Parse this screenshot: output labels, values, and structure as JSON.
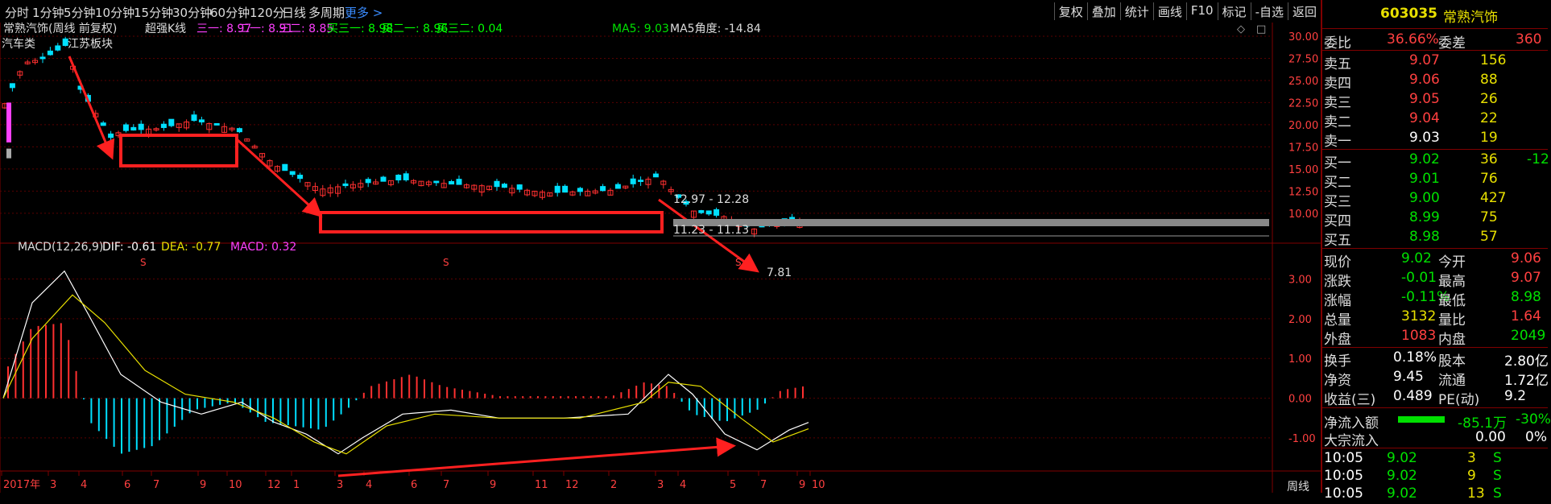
{
  "timeframes": [
    "分时",
    "1分钟",
    "5分钟",
    "10分钟",
    "15分钟",
    "30分钟",
    "60分钟",
    "120分",
    "日线",
    "多周期",
    "更多 >"
  ],
  "toolbar": [
    "复权",
    "叠加",
    "统计",
    "画线",
    "F10",
    "标记",
    "-自选",
    "返回"
  ],
  "header": {
    "title": "常熟汽饰(周线 前复权)",
    "indicator_name": "超强K线",
    "params": [
      {
        "text": "三一: 8.97",
        "color": "#ff40ff"
      },
      {
        "text": "二一: 8.91",
        "color": "#ff40ff"
      },
      {
        "text": "三二: 8.85",
        "color": "#ff40ff"
      },
      {
        "text": "买三一: 8.98",
        "color": "#00ff00"
      },
      {
        "text": "买二一: 8.96",
        "color": "#00ff00"
      },
      {
        "text": "买三二: 0.04",
        "color": "#00ff00"
      }
    ],
    "ma5": "MA5: 9.03",
    "ma5_angle": "MA5角度: -14.84"
  },
  "sector": "汽车类",
  "sector2": "江苏板块",
  "price_axis": [
    "30.00",
    "27.50",
    "25.00",
    "22.50",
    "20.00",
    "17.50",
    "15.00",
    "12.50",
    "10.00"
  ],
  "macd_axis": [
    "3.00",
    "2.00",
    "1.00",
    "0.00",
    "-1.00"
  ],
  "macd_header": {
    "name": "MACD(12,26,9)",
    "dif": "DIF: -0.61",
    "dea": "DEA: -0.77",
    "macd": "MACD: 0.32"
  },
  "annotations": {
    "range1": "12.97 - 12.28",
    "range2": "11.23 - 11.13",
    "low": "7.81",
    "s_marks": [
      "S",
      "S",
      "S"
    ]
  },
  "date_labels": [
    "2017年",
    "3",
    "4",
    "6",
    "7",
    "9",
    "10",
    "12",
    "1",
    "3",
    "4",
    "6",
    "7",
    "9",
    "11",
    "12",
    "2",
    "3",
    "4",
    "5",
    "7",
    "9",
    "10"
  ],
  "period_label": "周线",
  "colors": {
    "up": "#ff3030",
    "down": "#00e0ff",
    "highlight": "#ff2020",
    "grid": "#5a0000",
    "dif": "#ffffff",
    "dea": "#e8e000"
  },
  "stock": {
    "code": "603035",
    "name": "常熟汽饰"
  },
  "weibi": {
    "label1": "委比",
    "value1": "36.66%",
    "label2": "委差",
    "value2": "360"
  },
  "asks": [
    {
      "label": "卖五",
      "price": "9.07",
      "vol": "156"
    },
    {
      "label": "卖四",
      "price": "9.06",
      "vol": "88"
    },
    {
      "label": "卖三",
      "price": "9.05",
      "vol": "26"
    },
    {
      "label": "卖二",
      "price": "9.04",
      "vol": "22"
    },
    {
      "label": "卖一",
      "price": "9.03",
      "vol": "19"
    }
  ],
  "bids": [
    {
      "label": "买一",
      "price": "9.02",
      "vol": "36",
      "extra": "-12"
    },
    {
      "label": "买二",
      "price": "9.01",
      "vol": "76",
      "extra": ""
    },
    {
      "label": "买三",
      "price": "9.00",
      "vol": "427",
      "extra": ""
    },
    {
      "label": "买四",
      "price": "8.99",
      "vol": "75",
      "extra": ""
    },
    {
      "label": "买五",
      "price": "8.98",
      "vol": "57",
      "extra": ""
    }
  ],
  "quote": [
    {
      "l1": "现价",
      "v1": "9.02",
      "c1": "dn",
      "l2": "今开",
      "v2": "9.06",
      "c2": "up"
    },
    {
      "l1": "涨跌",
      "v1": "-0.01",
      "c1": "dn",
      "l2": "最高",
      "v2": "9.07",
      "c2": "up"
    },
    {
      "l1": "涨幅",
      "v1": "-0.11%",
      "c1": "dn",
      "l2": "最低",
      "v2": "8.98",
      "c2": "dn"
    },
    {
      "l1": "总量",
      "v1": "3132",
      "c1": "yl",
      "l2": "量比",
      "v2": "1.64",
      "c2": "up"
    },
    {
      "l1": "外盘",
      "v1": "1083",
      "c1": "up",
      "l2": "内盘",
      "v2": "2049",
      "c2": "dn"
    }
  ],
  "fund": [
    {
      "l1": "换手",
      "v1": "0.18%",
      "l2": "股本",
      "v2": "2.80亿"
    },
    {
      "l1": "净资",
      "v1": "9.45",
      "l2": "流通",
      "v2": "1.72亿"
    },
    {
      "l1": "收益(三)",
      "v1": "0.489",
      "l2": "PE(动)",
      "v2": "9.2"
    }
  ],
  "flow": [
    {
      "label": "净流入额",
      "value": "-85.1万",
      "pct": "-30%"
    },
    {
      "label": "大宗流入",
      "value": "0.00",
      "pct": "0%"
    }
  ],
  "ticks": [
    {
      "time": "10:05",
      "price": "9.02",
      "vol": "3",
      "side": "S"
    },
    {
      "time": "10:05",
      "price": "9.02",
      "vol": "9",
      "side": "S"
    },
    {
      "time": "10:05",
      "price": "9.02",
      "vol": "13",
      "side": "S"
    }
  ]
}
